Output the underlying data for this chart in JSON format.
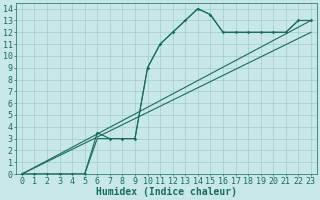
{
  "xlabel": "Humidex (Indice chaleur)",
  "xlim": [
    -0.5,
    23.5
  ],
  "ylim": [
    0,
    14.5
  ],
  "xticks": [
    0,
    1,
    2,
    3,
    4,
    5,
    6,
    7,
    8,
    9,
    10,
    11,
    12,
    13,
    14,
    15,
    16,
    17,
    18,
    19,
    20,
    21,
    22,
    23
  ],
  "yticks": [
    0,
    1,
    2,
    3,
    4,
    5,
    6,
    7,
    8,
    9,
    10,
    11,
    12,
    13,
    14
  ],
  "bg_color": "#c8e8e8",
  "line_color": "#1a6b5a",
  "grid_color": "#a0cccc",
  "curve2_x": [
    0,
    5,
    6,
    7,
    8,
    9,
    10,
    11,
    12,
    13,
    14,
    15,
    16,
    17,
    18,
    19,
    20,
    21,
    22,
    23
  ],
  "curve2_y": [
    0,
    0,
    3,
    3,
    3,
    3,
    9,
    11,
    12,
    13,
    14,
    13.5,
    12,
    12,
    12,
    12,
    12,
    12,
    13,
    13
  ],
  "line1_x": [
    0,
    23
  ],
  "line1_y": [
    0,
    13
  ],
  "line2_x": [
    0,
    23
  ],
  "line2_y": [
    0,
    12
  ],
  "marker_x": [
    0,
    1,
    2,
    3,
    4,
    5,
    6,
    7,
    8,
    9,
    10,
    11,
    12,
    13,
    14,
    15,
    16,
    17,
    18,
    19,
    20,
    21,
    22,
    23
  ],
  "marker_y": [
    0,
    0,
    0,
    0,
    0,
    0,
    3.5,
    3,
    3,
    3,
    9,
    11,
    12,
    13,
    14,
    13.5,
    12,
    12,
    12,
    12,
    12,
    12,
    13,
    13
  ],
  "font_size": 6
}
